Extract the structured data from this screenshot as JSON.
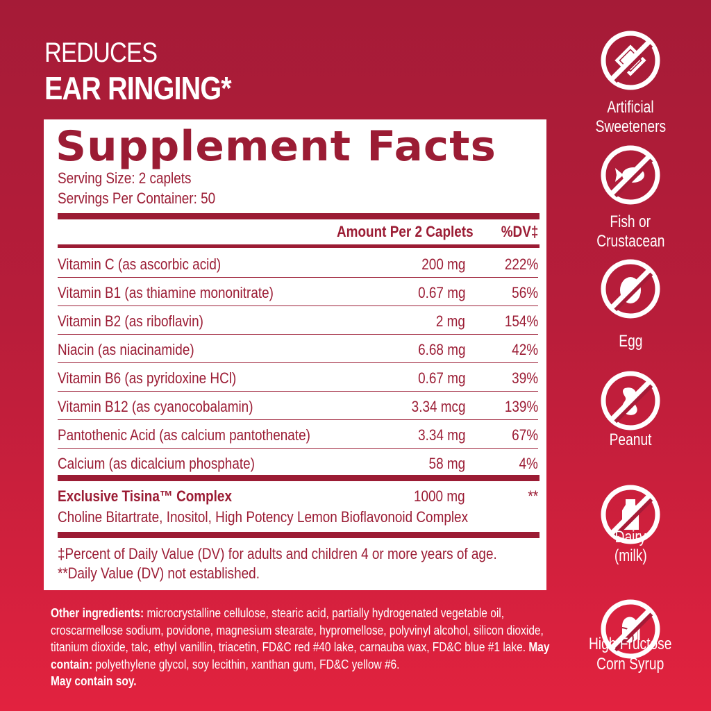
{
  "headline": {
    "line1": "REDUCES",
    "line2": "EAR RINGING*"
  },
  "facts": {
    "title": "Supplement Facts",
    "serving_size": "Serving Size: 2 caplets",
    "servings_per_container": "Servings Per Container: 50",
    "col_amount": "Amount Per 2 Caplets",
    "col_dv": "%DV‡",
    "rows": [
      {
        "name": "Vitamin C (as ascorbic acid)",
        "amount": "200 mg",
        "dv": "222%"
      },
      {
        "name": "Vitamin B1 (as thiamine mononitrate)",
        "amount": "0.67 mg",
        "dv": "56%"
      },
      {
        "name": "Vitamin B2 (as riboflavin)",
        "amount": "2 mg",
        "dv": "154%"
      },
      {
        "name": "Niacin (as niacinamide)",
        "amount": "6.68 mg",
        "dv": "42%"
      },
      {
        "name": "Vitamin B6 (as pyridoxine HCl)",
        "amount": "0.67 mg",
        "dv": "39%"
      },
      {
        "name": "Vitamin B12 (as cyanocobalamin)",
        "amount": "3.34 mcg",
        "dv": "139%"
      },
      {
        "name": "Pantothenic Acid (as calcium pantothenate)",
        "amount": "3.34 mg",
        "dv": "67%"
      },
      {
        "name": "Calcium (as dicalcium phosphate)",
        "amount": "58 mg",
        "dv": "4%"
      }
    ],
    "complex": {
      "name": "Exclusive Tisina™ Complex",
      "amount": "1000 mg",
      "dv": "**",
      "ingredients": "Choline Bitartrate, Inositol, High Potency Lemon Bioflavonoid Complex"
    },
    "footnote1": "‡Percent of Daily Value (DV) for adults and children 4 or more years of age.",
    "footnote2": "**Daily Value (DV) not established."
  },
  "other": {
    "label1": "Other ingredients:",
    "text1": " microcrystalline cellulose, stearic acid, partially hydrogenated vegetable oil, croscarmellose sodium, povidone, magnesium stearate, hypromellose, polyvinyl alcohol, silicon dioxide, titanium dioxide, talc, ethyl vanillin, triacetin, FD&C red #40 lake, carnauba wax, FD&C blue #1 lake. ",
    "label2": "May contain:",
    "text2": " polyethylene glycol, soy lecithin, xanthan gum, FD&C yellow #6.",
    "label3": "May contain soy."
  },
  "free_from": [
    {
      "icon": "no-sweetener-icon",
      "line1": "Artificial",
      "line2": "Sweeteners"
    },
    {
      "icon": "no-fish-icon",
      "line1": "Fish or",
      "line2": "Crustacean"
    },
    {
      "icon": "no-egg-icon",
      "line1": "Egg",
      "line2": ""
    },
    {
      "icon": "no-peanut-icon",
      "line1": "Peanut",
      "line2": ""
    },
    {
      "icon": "no-dairy-icon",
      "line1": "Dairy",
      "line2": "(milk)"
    },
    {
      "icon": "no-corn-syrup-icon",
      "line1": "High Fructose",
      "line2": "Corn Syrup"
    }
  ],
  "colors": {
    "label_red": "#9b1c34",
    "bg_top": "#a51b37",
    "bg_bottom": "#e2223f"
  }
}
